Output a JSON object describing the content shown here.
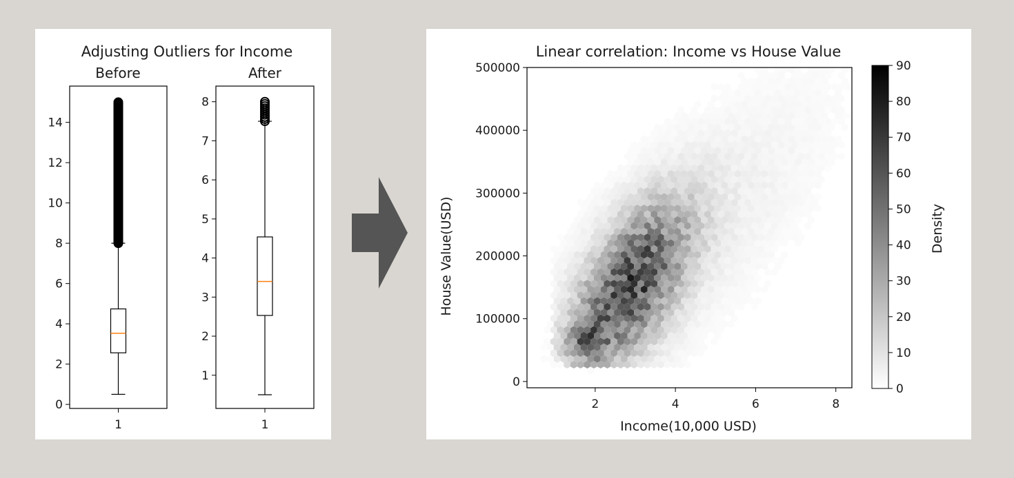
{
  "chart_data": [
    {
      "type": "boxplot",
      "title": "Adjusting Outliers for Income",
      "subplots": [
        {
          "subtitle": "Before",
          "categories": [
            "1"
          ],
          "ylim": [
            -0.2,
            15.8
          ],
          "yticks": [
            0,
            2,
            4,
            6,
            8,
            10,
            12,
            14
          ],
          "box": {
            "whisker_low": 0.5,
            "q1": 2.56,
            "median": 3.53,
            "q3": 4.74,
            "whisker_high": 8.0
          },
          "outliers_range": [
            8.0,
            15.0
          ]
        },
        {
          "subtitle": "After",
          "categories": [
            "1"
          ],
          "ylim": [
            0.15,
            8.4
          ],
          "yticks": [
            1,
            2,
            3,
            4,
            5,
            6,
            7,
            8
          ],
          "box": {
            "whisker_low": 0.5,
            "q1": 2.53,
            "median": 3.4,
            "q3": 4.54,
            "whisker_high": 7.5
          },
          "outliers_range": [
            7.5,
            8.0
          ]
        }
      ]
    },
    {
      "type": "hexbin",
      "title": "Linear correlation: Income vs House Value",
      "xlabel": "Income(10,000 USD)",
      "ylabel": "House Value(USD)",
      "xlim": [
        0.3,
        8.4
      ],
      "ylim": [
        -10000,
        500000
      ],
      "xticks": [
        2,
        4,
        6,
        8
      ],
      "yticks": [
        0,
        100000,
        200000,
        300000,
        400000,
        500000
      ],
      "colorbar": {
        "label": "Density",
        "range": [
          0,
          90
        ],
        "ticks": [
          0,
          10,
          20,
          30,
          40,
          50,
          60,
          70,
          80,
          90
        ],
        "cmap": "Greys"
      },
      "density_model": {
        "ridge_slope": 52000,
        "ridge_intercept": 5000,
        "peak_x": 1.8,
        "peak_y": 65000,
        "peak_density": 90
      }
    }
  ],
  "arrow": {
    "color": "#555555"
  }
}
